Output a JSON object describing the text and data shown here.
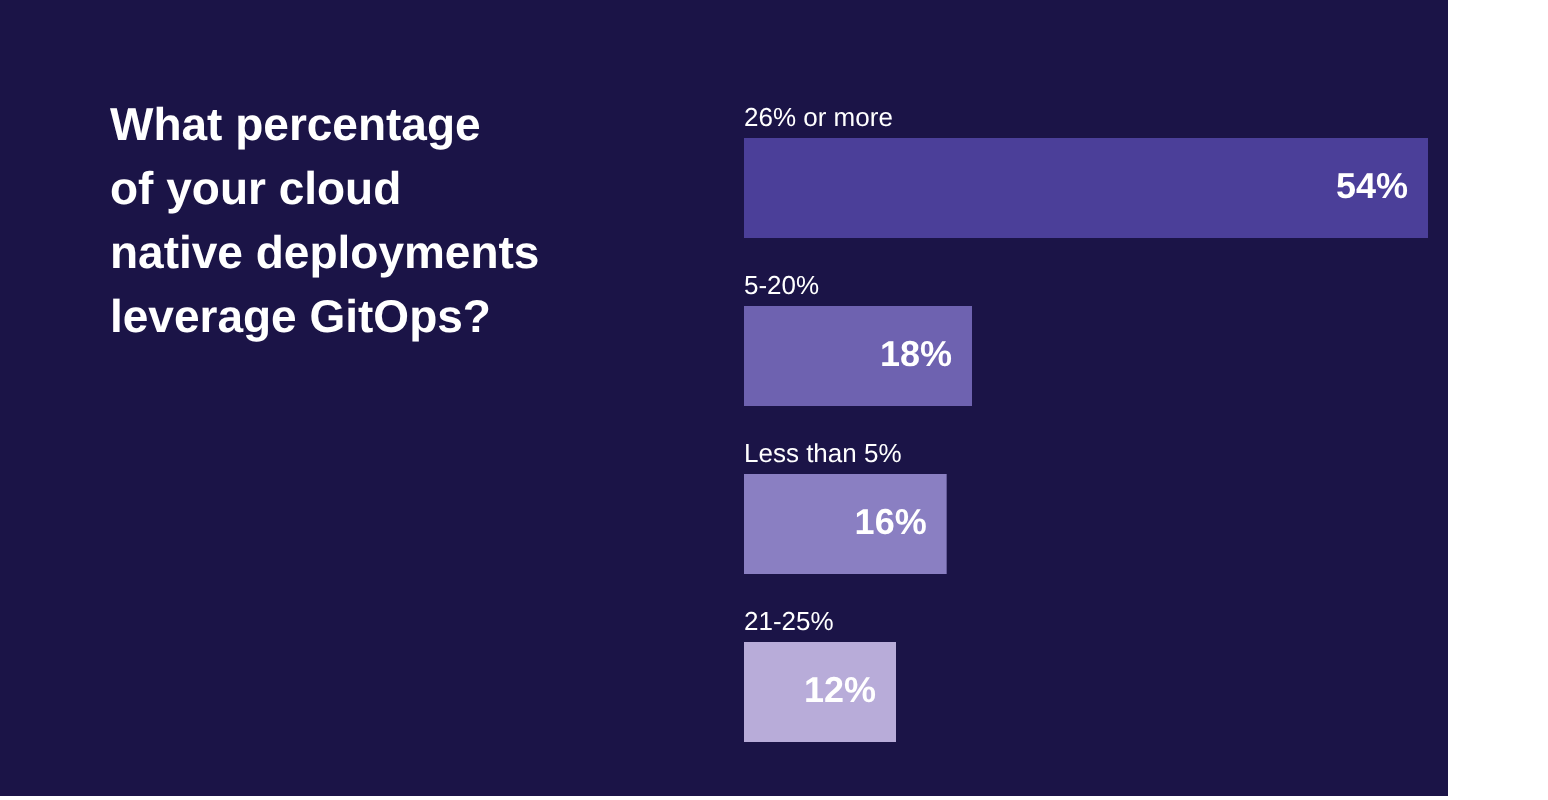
{
  "chart_data": {
    "type": "bar",
    "orientation": "horizontal",
    "title": "What percentage\nof your cloud\nnative deployments\nleverage GitOps?",
    "categories": [
      "26% or more",
      "5-20%",
      "Less than 5%",
      "21-25%"
    ],
    "values": [
      54,
      18,
      16,
      12
    ],
    "colors": [
      "#4b3f99",
      "#6e62b0",
      "#8a7fc2",
      "#b8acd9"
    ],
    "value_labels": [
      "54%",
      "18%",
      "16%",
      "12%"
    ]
  }
}
